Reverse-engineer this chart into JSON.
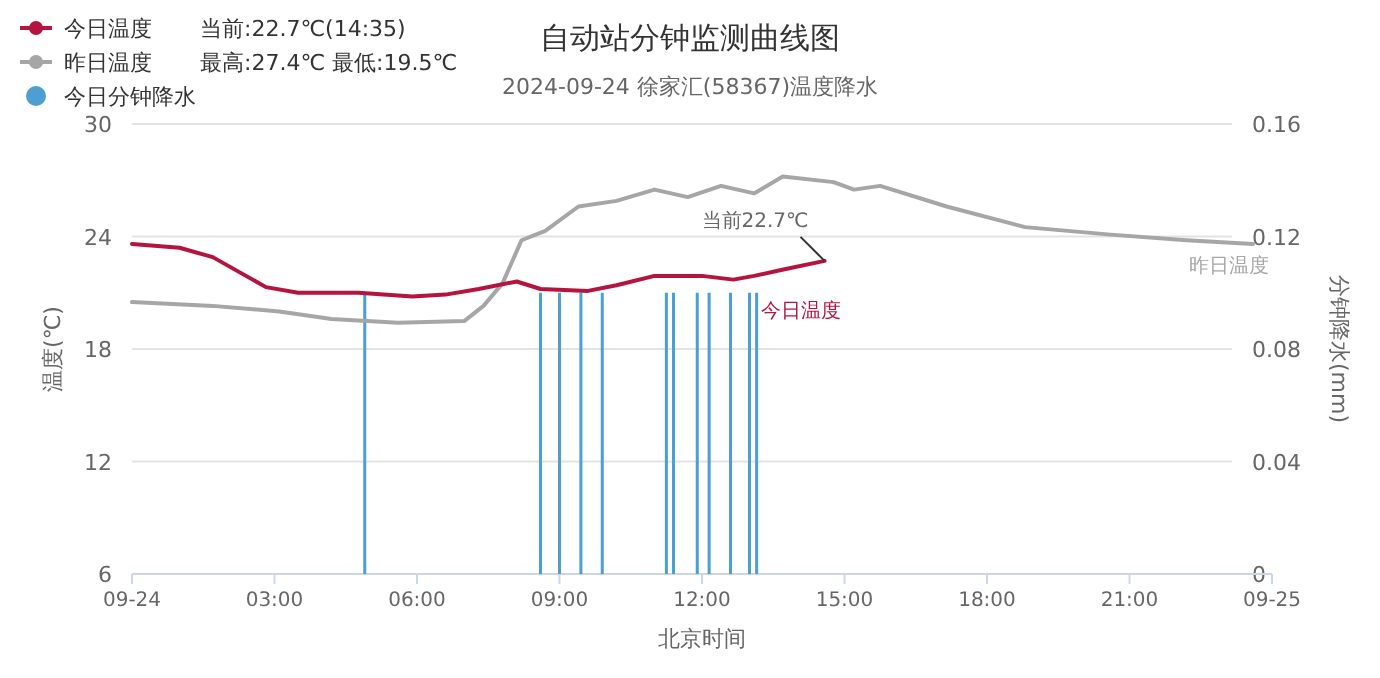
{
  "chart_data": {
    "type": "line",
    "title": "自动站分钟监测曲线图",
    "subtitle": "2024-09-24 徐家汇(58367)温度降水",
    "xlabel": "北京时间",
    "ylabel": "温度(℃)",
    "y2label": "分钟降水(mm)",
    "xlim": [
      0,
      24
    ],
    "xticks": [
      {
        "value": 0,
        "label": "09-24"
      },
      {
        "value": 3,
        "label": "03:00"
      },
      {
        "value": 6,
        "label": "06:00"
      },
      {
        "value": 9,
        "label": "09:00"
      },
      {
        "value": 12,
        "label": "12:00"
      },
      {
        "value": 15,
        "label": "15:00"
      },
      {
        "value": 18,
        "label": "18:00"
      },
      {
        "value": 21,
        "label": "21:00"
      },
      {
        "value": 24,
        "label": "09-25"
      }
    ],
    "ylim": [
      6,
      30
    ],
    "yticks": [
      6,
      12,
      18,
      24,
      30
    ],
    "y2lim": [
      0,
      0.16
    ],
    "y2ticks": [
      0,
      0.04,
      0.08,
      0.12,
      0.16
    ],
    "grid": "y",
    "legend": "top left",
    "series": [
      {
        "name": "今日温度",
        "color": "#b5143f",
        "x": [
          0,
          1.0,
          1.7,
          2.26,
          2.82,
          3.5,
          4.77,
          5.9,
          6.6,
          7.3,
          8.1,
          8.6,
          9.6,
          10.2,
          11.0,
          11.54,
          12.0,
          12.66,
          13.1,
          13.64,
          14.58
        ],
        "values": [
          23.6,
          23.4,
          22.9,
          22.1,
          21.3,
          21.0,
          21.0,
          20.8,
          20.9,
          21.2,
          21.6,
          21.2,
          21.1,
          21.4,
          21.9,
          21.9,
          21.9,
          21.7,
          21.9,
          22.2,
          22.7
        ]
      },
      {
        "name": "昨日温度",
        "color": "#a6a6a6",
        "x": [
          0,
          1.7,
          3.1,
          4.2,
          5.6,
          7.0,
          7.4,
          7.8,
          8.2,
          8.7,
          9.4,
          10.2,
          11.0,
          11.7,
          12.4,
          13.1,
          13.7,
          14.77,
          15.2,
          15.75,
          17.15,
          18.8,
          20.6,
          22.2,
          23.6
        ],
        "values": [
          20.5,
          20.3,
          20.0,
          19.6,
          19.4,
          19.5,
          20.3,
          21.5,
          23.8,
          24.3,
          25.6,
          25.9,
          26.5,
          26.1,
          26.7,
          26.3,
          27.2,
          26.9,
          26.5,
          26.7,
          25.6,
          24.5,
          24.1,
          23.8,
          23.6
        ]
      },
      {
        "name": "今日分钟降水",
        "color": "#4c9fcf",
        "type": "bar",
        "axis": "y2",
        "x": [
          4.9,
          8.6,
          9.0,
          9.45,
          9.9,
          11.25,
          11.4,
          11.9,
          12.15,
          12.6,
          13.0,
          13.15
        ],
        "values": [
          0.1,
          0.1,
          0.1,
          0.1,
          0.1,
          0.1,
          0.1,
          0.1,
          0.1,
          0.1,
          0.1,
          0.1
        ]
      }
    ],
    "annotations": [
      {
        "text": "当前22.7℃",
        "x": 14.58,
        "y": 22.7
      },
      "当前:22.7℃(14:35)",
      "最高:27.4℃ 最低:19.5℃"
    ]
  }
}
